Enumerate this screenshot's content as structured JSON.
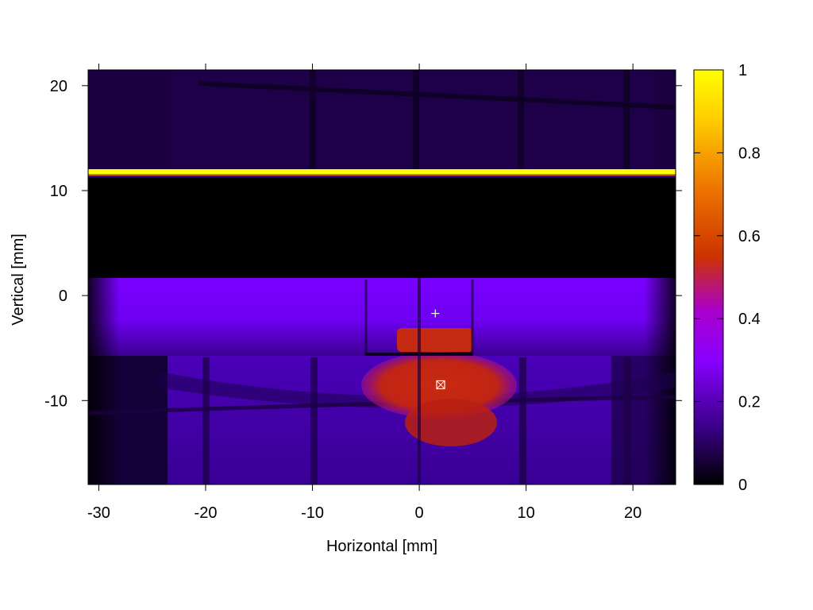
{
  "chart_data": {
    "type": "heatmap",
    "title": "",
    "xlabel": "Horizontal [mm]",
    "ylabel": "Vertical [mm]",
    "xlim": [
      -31,
      24
    ],
    "ylim": [
      -18,
      21.5
    ],
    "x_ticks": [
      -30,
      -20,
      -10,
      0,
      10,
      20
    ],
    "x_tick_labels": [
      "-30",
      "-20",
      "-10",
      "0",
      "10",
      "20"
    ],
    "y_ticks": [
      20,
      10,
      0,
      -10
    ],
    "y_tick_labels": [
      "20",
      "10",
      "0",
      "-10"
    ],
    "colorbar": {
      "min": 0,
      "max": 1,
      "ticks": [
        0,
        0.2,
        0.4,
        0.6,
        0.8,
        1
      ],
      "tick_labels": [
        "0",
        "0.2",
        "0.4",
        "0.6",
        "0.8",
        "1"
      ],
      "colormap": [
        "#000000",
        "#3a0088",
        "#8800ff",
        "#aa00cc",
        "#cc3300",
        "#ee7700",
        "#ffcc00",
        "#ffff00"
      ]
    },
    "grid": false,
    "markers": [
      {
        "name": "plus",
        "x": 1.5,
        "y": -1.7
      },
      {
        "name": "box-x",
        "x": 2.0,
        "y": -8.5
      }
    ],
    "regions": [
      {
        "desc": "dark top band",
        "x": [
          -31,
          24
        ],
        "y": [
          12,
          21.5
        ],
        "value": 0.05
      },
      {
        "desc": "bright line",
        "x": [
          -31,
          24
        ],
        "y": [
          11.6,
          12.0
        ],
        "value": 1.0
      },
      {
        "desc": "black gap",
        "x": [
          -31,
          24
        ],
        "y": [
          1.7,
          11.5
        ],
        "value": 0.0
      },
      {
        "desc": "purple beam",
        "x": [
          -31,
          24
        ],
        "y": [
          -5.5,
          1.7
        ],
        "value": 0.2
      },
      {
        "desc": "lower area",
        "x": [
          -24,
          24
        ],
        "y": [
          -18,
          -5.5
        ],
        "value": 0.15
      },
      {
        "desc": "hot spot upper",
        "x": [
          -5,
          5
        ],
        "y": [
          -5.3,
          -2.5
        ],
        "value": 0.5
      },
      {
        "desc": "hot spot lower",
        "x": [
          -5,
          9
        ],
        "y": [
          -13.5,
          -5.5
        ],
        "value": 0.5
      }
    ]
  }
}
